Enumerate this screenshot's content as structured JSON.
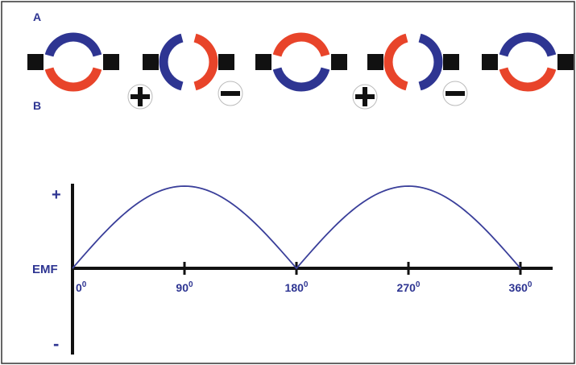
{
  "labels": {
    "segment_a": "A",
    "segment_b": "B",
    "emf_axis": "EMF",
    "plus_axis": "+",
    "minus_axis": "-"
  },
  "angle_ticks": [
    {
      "base": "0",
      "sup": "0"
    },
    {
      "base": "90",
      "sup": "0"
    },
    {
      "base": "180",
      "sup": "0"
    },
    {
      "base": "270",
      "sup": "0"
    },
    {
      "base": "360",
      "sup": "0"
    }
  ],
  "commutator_positions": [
    {
      "angle": 0,
      "top_segment": "A",
      "polarity": "none"
    },
    {
      "angle": 90,
      "left_segment": "A",
      "polarity": "plus-minus"
    },
    {
      "angle": 180,
      "top_segment": "B",
      "polarity": "none"
    },
    {
      "angle": 270,
      "left_segment": "B",
      "polarity": "plus-minus"
    },
    {
      "angle": 360,
      "top_segment": "A",
      "polarity": "none"
    }
  ],
  "chart_data": {
    "type": "line",
    "x": [
      0,
      90,
      180,
      270,
      360
    ],
    "series": [
      {
        "values": [
          0,
          1,
          0,
          1,
          0
        ],
        "shape": "rectified-sine"
      }
    ],
    "xlim": [
      0,
      360
    ],
    "ylim": [
      -1,
      1
    ]
  },
  "colors": {
    "segment_a": "#2e3592",
    "segment_b": "#e8442a",
    "brush": "#111111",
    "axis": "#111111",
    "curve": "#3a3f9a",
    "label": "#2e3592",
    "border": "#333333"
  }
}
